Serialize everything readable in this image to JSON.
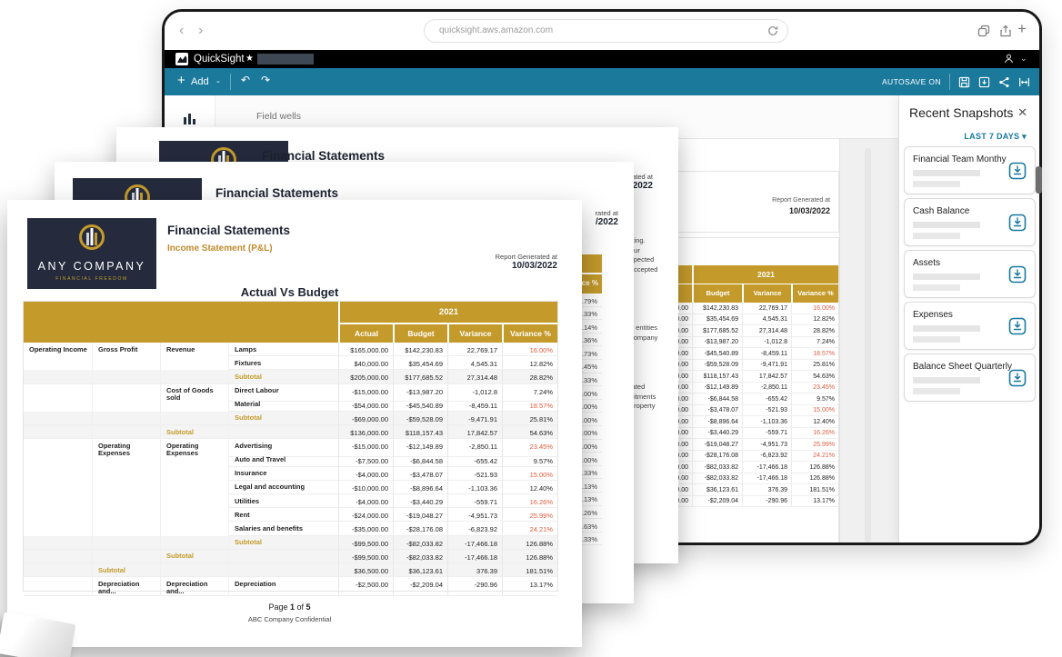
{
  "colors": {
    "toolbar_blue": "#1B7A9C",
    "gold": "#C49B2B",
    "navy": "#252B3D",
    "variance_red": "#DF5C3E",
    "teal_link": "#1779A0"
  },
  "icons": {
    "back": "‹",
    "forward": "›",
    "plus": "+",
    "star": "★",
    "caret_down": "⌄",
    "filter_caret": "▾",
    "close": "✕",
    "undo": "↶",
    "redo": "↷"
  },
  "browser": {
    "url": "quicksight.aws.amazon.com"
  },
  "app_bar": {
    "app_name": "QuickSight"
  },
  "toolbar": {
    "add_label": "Add",
    "autosave_label": "AUTOSAVE ON"
  },
  "workspace": {
    "field_wells_label": "Field wells"
  },
  "snapshots": {
    "title": "Recent Snapshots",
    "filter_label": "LAST 7 DAYS",
    "cards": [
      {
        "title": "Financial Team Monthy"
      },
      {
        "title": "Cash Balance"
      },
      {
        "title": "Assets"
      },
      {
        "title": "Expenses"
      },
      {
        "title": "Balance Sheet Quarterly"
      }
    ]
  },
  "report": {
    "company_name": "ANY COMPANY",
    "company_tagline": "FINANCIAL FREEDOM",
    "title": "Financial Statements",
    "subtitle": "Income Statement  (P&L)",
    "generated_label": "Report Generated at",
    "generated_date": "10/03/2022",
    "table_title": "Actual Vs Budget",
    "year_header": "2021",
    "value_columns": [
      "Actual",
      "Budget",
      "Variance",
      "Variance %"
    ],
    "rows": [
      {
        "c1": "Operating Income",
        "c2": "Gross Profit",
        "c3": "Revenue",
        "c4": "Lamps",
        "a": "$165,000.00",
        "b": "$142,230.83",
        "v": "22,769.17",
        "p": "16.00%",
        "red": true
      },
      {
        "c4": "Fixtures",
        "a": "$40,000.00",
        "b": "$35,454.69",
        "v": "4,545.31",
        "p": "12.82%"
      },
      {
        "c4": "Subtotal",
        "sub": "c4",
        "a": "$205,000.00",
        "b": "$177,685.52",
        "v": "27,314.48",
        "p": "28.82%"
      },
      {
        "c3": "Cost of Goods sold",
        "c4": "Direct Labour",
        "a": "-$15,000.00",
        "b": "-$13,987.20",
        "v": "-1,012.8",
        "p": "7.24%"
      },
      {
        "c4": "Material",
        "a": "-$54,000.00",
        "b": "-$45,540.89",
        "v": "-8,459.11",
        "p": "18.57%",
        "red": true
      },
      {
        "c4": "Subtotal",
        "sub": "c4",
        "a": "-$69,000.00",
        "b": "-$59,528.09",
        "v": "-9,471.91",
        "p": "25.81%"
      },
      {
        "c3": "Subtotal",
        "sub": "c3",
        "a": "$136,000.00",
        "b": "$118,157.43",
        "v": "17,842.57",
        "p": "54.63%"
      },
      {
        "c2": "Operating Expenses",
        "c3": "Operating Expenses",
        "c4": "Advertising",
        "a": "-$15,000.00",
        "b": "-$12,149.89",
        "v": "-2,850.11",
        "p": "23.45%",
        "red": true
      },
      {
        "c4": "Auto and Travel",
        "a": "-$7,500.00",
        "b": "-$6,844.58",
        "v": "-655.42",
        "p": "9.57%"
      },
      {
        "c4": "Insurance",
        "a": "-$4,000.00",
        "b": "-$3,478.07",
        "v": "-521.93",
        "p": "15.00%",
        "red": true
      },
      {
        "c4": "Legal and accounting",
        "a": "-$10,000.00",
        "b": "-$8,896.64",
        "v": "-1,103.36",
        "p": "12.40%"
      },
      {
        "c4": "Utilities",
        "a": "-$4,000.00",
        "b": "-$3,440.29",
        "v": "-559.71",
        "p": "16.26%",
        "red": true
      },
      {
        "c4": "Rent",
        "a": "-$24,000.00",
        "b": "-$19,048.27",
        "v": "-4,951.73",
        "p": "25.99%",
        "red": true
      },
      {
        "c4": "Salaries and benefits",
        "a": "-$35,000.00",
        "b": "-$28,176.08",
        "v": "-6,823.92",
        "p": "24.21%",
        "red": true
      },
      {
        "c4": "Subtotal",
        "sub": "c4",
        "a": "-$99,500.00",
        "b": "-$82,033.82",
        "v": "-17,466.18",
        "p": "126.88%"
      },
      {
        "c3": "Subtotal",
        "sub": "c3",
        "a": "-$99,500.00",
        "b": "-$82,033.82",
        "v": "-17,466.18",
        "p": "126.88%"
      },
      {
        "c2": "Subtotal",
        "sub": "c2",
        "a": "$36,500.00",
        "b": "$36,123.61",
        "v": "376.39",
        "p": "181.51%"
      },
      {
        "c2": "Depreciation and...",
        "c3": "Depreciation and...",
        "c4": "Depreciation",
        "a": "-$2,500.00",
        "b": "-$2,209.04",
        "v": "-290.96",
        "p": "13.17%"
      }
    ],
    "page_footer_parts": {
      "pre": "Page ",
      "num": "1",
      "mid": " of ",
      "total": "5"
    },
    "confidential_footer": "ABC Company Confidential"
  },
  "stacked_pages": {
    "back": {
      "title": "Financial Statements",
      "generated_fragments": [
        "ated at",
        "/2022"
      ],
      "text_fragments": [
        [
          "rting.",
          "our",
          "xpected",
          "accepted",
          "d"
        ],
        [
          "e entities",
          "company"
        ],
        [
          "lated",
          "nitments",
          "property"
        ]
      ]
    },
    "mid": {
      "title": "Financial Statements",
      "generated_fragments": [
        "rated at",
        "/2022"
      ],
      "header_fragment": "ance %",
      "percent_fragments": [
        "3.79%",
        "3.33%",
        "7.14%",
        "6.36%",
        "2.73%",
        "5.45%",
        "3.33%",
        "5.00%",
        "0.00%",
        "0.00%",
        "5.00%",
        "0.00%",
        "0.00%",
        "3.33%",
        "1.13%",
        "1.13%",
        "6.26%",
        "0.63%",
        "8.33%"
      ]
    }
  },
  "canvas_visuals": {
    "generated_label": "Report Generated at",
    "generated_date": "10/03/2022",
    "year_header": "2021",
    "columns": [
      "Budget",
      "Variance",
      "Variance %"
    ]
  }
}
